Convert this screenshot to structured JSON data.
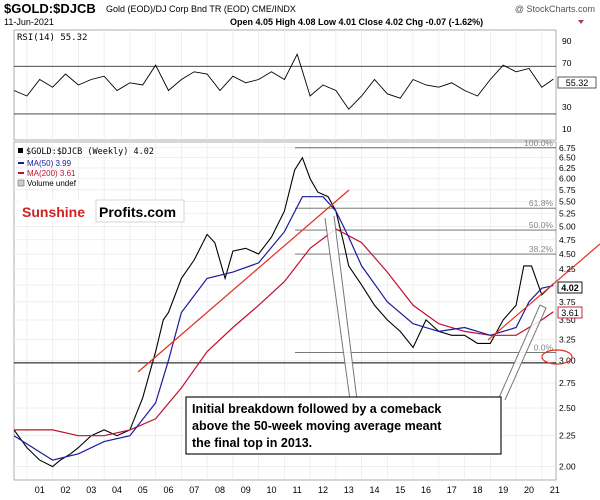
{
  "header": {
    "symbol": "$GOLD:$DJCB",
    "description": "Gold (EOD)/DJ Corp Bnd TR (EOD)  CME/INDX",
    "watermark": "@ StockCharts.com",
    "date": "11-Jun-2021",
    "ohlc": "Open 4.05  High 4.08  Low 4.01  Close 4.02  Chg -0.07 (-1.62%)"
  },
  "rsi_panel": {
    "label": "RSI(14) 55.32",
    "current_value": 55.32,
    "current_label": "55.32",
    "y_ticks": [
      "90",
      "70",
      "50",
      "30",
      "10"
    ]
  },
  "price_panel": {
    "legend": [
      {
        "text": "$GOLD:$DJCB (Weekly) 4.02",
        "color": "#000000"
      },
      {
        "text": "MA(50) 3.99",
        "color": "#1a1a9c"
      },
      {
        "text": "MA(200) 3.61",
        "color": "#c01030"
      },
      {
        "text": "Volume undef",
        "color": "#000000"
      }
    ],
    "y_ticks": [
      "6.75",
      "6.50",
      "6.25",
      "6.00",
      "5.75",
      "5.50",
      "5.25",
      "5.00",
      "4.75",
      "4.50",
      "4.25",
      "4.00",
      "3.75",
      "3.50",
      "3.25",
      "3.00",
      "2.75",
      "2.50",
      "2.25",
      "2.00"
    ],
    "last_price_label": "4.02",
    "ma200_label": "3.61",
    "fib_levels": [
      {
        "label": "100.0%",
        "value": 6.75
      },
      {
        "label": "61.8%",
        "value": 5.36
      },
      {
        "label": "50.0%",
        "value": 4.93
      },
      {
        "label": "38.2%",
        "value": 4.5
      },
      {
        "label": "0.0%",
        "value": 3.09
      }
    ],
    "horizontal_line": 2.97,
    "logo": {
      "part1": "Sunshine",
      "part2": "Profits.com"
    },
    "annotation": "Initial breakdown followed by a comeback above the 50-week moving average meant the final top in 2013.",
    "annotation_lines": [
      "Initial breakdown followed by a comeback",
      "above the 50-week moving average meant",
      "the final top in 2013."
    ]
  },
  "x_labels": [
    "01",
    "02",
    "03",
    "04",
    "05",
    "06",
    "07",
    "08",
    "09",
    "10",
    "11",
    "12",
    "13",
    "14",
    "15",
    "16",
    "17",
    "18",
    "19",
    "20",
    "21"
  ],
  "colors": {
    "price": "#000000",
    "ma50": "#1a1a9c",
    "ma200": "#c01030",
    "trendline": "#e03020",
    "fib": "#666666",
    "annotation_border": "#000000",
    "grid": "#e6e6e6"
  },
  "chart_data": {
    "type": "line",
    "x_unit": "year",
    "series": [
      {
        "name": "$GOLD:$DJCB (Weekly)",
        "x": [
          2000.5,
          2001.0,
          2001.5,
          2002.0,
          2002.3,
          2002.7,
          2003.0,
          2003.5,
          2004.0,
          2004.5,
          2005.0,
          2005.5,
          2006.0,
          2006.3,
          2006.5,
          2007.0,
          2007.5,
          2008.0,
          2008.3,
          2008.7,
          2009.0,
          2009.5,
          2010.0,
          2010.5,
          2011.0,
          2011.4,
          2011.7,
          2012.0,
          2012.3,
          2012.7,
          2013.0,
          2013.3,
          2013.5,
          2014.0,
          2014.5,
          2015.0,
          2015.5,
          2016.0,
          2016.5,
          2017.0,
          2017.5,
          2018.0,
          2018.5,
          2019.0,
          2019.5,
          2020.0,
          2020.3,
          2020.6,
          2021.0,
          2021.45
        ],
        "y": [
          2.3,
          2.15,
          2.05,
          2.0,
          2.05,
          2.1,
          2.15,
          2.25,
          2.3,
          2.25,
          2.3,
          2.6,
          3.1,
          3.5,
          3.6,
          4.1,
          4.4,
          4.85,
          4.7,
          4.1,
          4.55,
          4.6,
          4.5,
          4.8,
          5.3,
          6.2,
          6.5,
          6.0,
          5.7,
          5.6,
          5.3,
          4.7,
          4.3,
          4.0,
          3.7,
          3.5,
          3.35,
          3.15,
          3.5,
          3.35,
          3.3,
          3.3,
          3.2,
          3.2,
          3.5,
          3.7,
          4.3,
          4.3,
          3.85,
          4.02
        ]
      },
      {
        "name": "MA(50)",
        "x": [
          2000.5,
          2002.0,
          2003.0,
          2004.0,
          2005.0,
          2006.0,
          2006.5,
          2007.0,
          2008.0,
          2009.0,
          2010.0,
          2011.0,
          2011.7,
          2012.5,
          2013.0,
          2013.5,
          2014.0,
          2015.0,
          2016.0,
          2017.0,
          2018.0,
          2019.0,
          2020.0,
          2020.5,
          2021.0,
          2021.45
        ],
        "y": [
          2.25,
          2.05,
          2.1,
          2.2,
          2.25,
          2.55,
          3.0,
          3.6,
          4.1,
          4.2,
          4.35,
          4.9,
          5.6,
          5.6,
          5.3,
          4.8,
          4.3,
          3.75,
          3.45,
          3.35,
          3.4,
          3.3,
          3.4,
          3.75,
          3.95,
          3.99
        ]
      },
      {
        "name": "MA(200)",
        "x": [
          2000.5,
          2002.0,
          2003.0,
          2004.0,
          2005.0,
          2006.0,
          2007.0,
          2008.0,
          2009.0,
          2010.0,
          2011.0,
          2012.0,
          2013.0,
          2014.0,
          2015.0,
          2016.0,
          2017.0,
          2018.0,
          2019.0,
          2020.0,
          2020.5,
          2021.0,
          2021.45
        ],
        "y": [
          2.3,
          2.3,
          2.25,
          2.25,
          2.3,
          2.4,
          2.7,
          3.1,
          3.4,
          3.7,
          4.05,
          4.6,
          4.95,
          4.7,
          4.2,
          3.7,
          3.45,
          3.35,
          3.3,
          3.3,
          3.4,
          3.5,
          3.61
        ]
      },
      {
        "name": "RSI(14)",
        "x": [
          2000.5,
          2001.0,
          2001.5,
          2002.0,
          2002.5,
          2003.0,
          2003.5,
          2004.0,
          2004.5,
          2005.0,
          2005.5,
          2006.0,
          2006.5,
          2007.0,
          2007.5,
          2008.0,
          2008.5,
          2009.0,
          2009.5,
          2010.0,
          2010.5,
          2011.0,
          2011.5,
          2012.0,
          2012.5,
          2013.0,
          2013.5,
          2014.0,
          2014.5,
          2015.0,
          2015.5,
          2016.0,
          2016.5,
          2017.0,
          2017.5,
          2018.0,
          2018.5,
          2019.0,
          2019.5,
          2020.0,
          2020.5,
          2021.0,
          2021.45
        ],
        "y": [
          45,
          40,
          55,
          48,
          60,
          50,
          55,
          58,
          45,
          52,
          50,
          68,
          45,
          55,
          62,
          60,
          45,
          58,
          52,
          55,
          62,
          55,
          78,
          40,
          50,
          45,
          28,
          40,
          55,
          42,
          38,
          55,
          50,
          48,
          52,
          45,
          40,
          55,
          68,
          62,
          65,
          48,
          55.32
        ]
      }
    ],
    "xlabel": "",
    "ylabel": "",
    "xlim": [
      2000.5,
      2021.55
    ],
    "ylim": [
      1.9,
      6.9
    ],
    "y_scale": "log",
    "rsi_ylim": [
      0,
      100
    ],
    "grid": true,
    "legend": "top-left"
  }
}
